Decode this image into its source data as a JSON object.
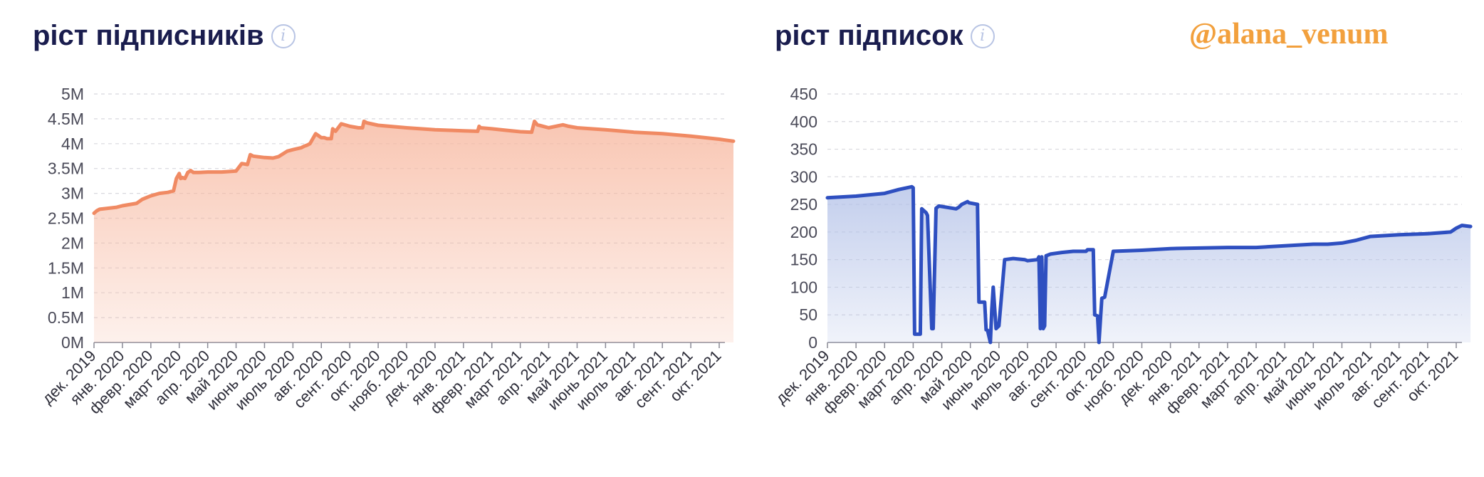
{
  "watermark": "@alana_venum",
  "info_glyph": "i",
  "chart_data": [
    {
      "type": "area",
      "title": "ріст підписників",
      "color": "#f08a63",
      "fill": "#f7b8a0",
      "yticks": [
        "0M",
        "0.5M",
        "1M",
        "1.5M",
        "2M",
        "2.5M",
        "3M",
        "3.5M",
        "4M",
        "4.5M",
        "5M"
      ],
      "ylim": [
        0,
        5000000
      ],
      "xticks": [
        "дек. 2019",
        "янв. 2020",
        "февр. 2020",
        "март 2020",
        "апр. 2020",
        "май 2020",
        "июнь 2020",
        "июль 2020",
        "авг. 2020",
        "сент. 2020",
        "окт. 2020",
        "нояб. 2020",
        "дек. 2020",
        "янв. 2021",
        "февр. 2021",
        "март 2021",
        "апр. 2021",
        "май 2021",
        "июнь 2021",
        "июль 2021",
        "авг. 2021",
        "сент. 2021",
        "окт. 2021"
      ],
      "series": [
        {
          "x": [
            0,
            0.1,
            0.2,
            0.5,
            0.8,
            1,
            1.5,
            1.7,
            2,
            2.3,
            2.6,
            2.8,
            2.9,
            3.0,
            3.05,
            3.1,
            3.2,
            3.3,
            3.4,
            3.5,
            3.7,
            4,
            4.5,
            5,
            5.2,
            5.4,
            5.5,
            5.6,
            6,
            6.3,
            6.5,
            6.8,
            7,
            7.3,
            7.4,
            7.45,
            7.5,
            7.6,
            7.8,
            8.0,
            8.1,
            8.2,
            8.3,
            8.35,
            8.4,
            8.5,
            8.7,
            9,
            9.3,
            9.45,
            9.5,
            9.6,
            10,
            11,
            12,
            12.5,
            13,
            13.5,
            13.55,
            13.6,
            14,
            14.5,
            15,
            15.4,
            15.5,
            15.6,
            16,
            16.5,
            16.7,
            17,
            18,
            19,
            20,
            21,
            22,
            22.5
          ],
          "y": [
            2600000,
            2650000,
            2680000,
            2700000,
            2720000,
            2750000,
            2800000,
            2880000,
            2950000,
            3000000,
            3020000,
            3050000,
            3300000,
            3400000,
            3300000,
            3320000,
            3300000,
            3420000,
            3460000,
            3420000,
            3420000,
            3430000,
            3430000,
            3450000,
            3600000,
            3580000,
            3780000,
            3750000,
            3720000,
            3710000,
            3740000,
            3850000,
            3880000,
            3920000,
            3950000,
            3960000,
            3970000,
            4000000,
            4200000,
            4120000,
            4120000,
            4100000,
            4100000,
            4100000,
            4300000,
            4250000,
            4400000,
            4350000,
            4320000,
            4320000,
            4450000,
            4420000,
            4370000,
            4320000,
            4280000,
            4270000,
            4260000,
            4250000,
            4350000,
            4320000,
            4300000,
            4270000,
            4240000,
            4230000,
            4450000,
            4380000,
            4320000,
            4380000,
            4350000,
            4320000,
            4280000,
            4230000,
            4200000,
            4150000,
            4090000,
            4050000
          ]
        }
      ]
    },
    {
      "type": "area",
      "title": "ріст підписок",
      "color": "#2e4fc0",
      "fill": "#b4c2e8",
      "yticks": [
        "0",
        "50",
        "100",
        "150",
        "200",
        "250",
        "300",
        "350",
        "400",
        "450"
      ],
      "ylim": [
        0,
        450
      ],
      "xticks": [
        "дек. 2019",
        "янв. 2020",
        "февр. 2020",
        "март 2020",
        "апр. 2020",
        "май 2020",
        "июнь 2020",
        "июль 2020",
        "авг. 2020",
        "сент. 2020",
        "окт. 2020",
        "нояб. 2020",
        "дек. 2020",
        "янв. 2021",
        "февр. 2021",
        "март 2021",
        "апр. 2021",
        "май 2021",
        "июнь 2021",
        "июль 2021",
        "авг. 2021",
        "сент. 2021",
        "окт. 2021"
      ],
      "series": [
        {
          "x": [
            0,
            1,
            2,
            2.5,
            2.95,
            3.0,
            3.05,
            3.25,
            3.3,
            3.45,
            3.5,
            3.65,
            3.7,
            3.8,
            3.9,
            4.5,
            4.6,
            4.7,
            4.9,
            4.95,
            5.25,
            5.3,
            5.35,
            5.5,
            5.55,
            5.6,
            5.7,
            5.75,
            5.8,
            5.9,
            6.0,
            6.2,
            6.5,
            6.9,
            7.0,
            7.35,
            7.4,
            7.45,
            7.5,
            7.55,
            7.6,
            7.65,
            7.7,
            7.8,
            8.2,
            8.6,
            9.05,
            9.1,
            9.3,
            9.35,
            9.45,
            9.5,
            9.6,
            9.7,
            10,
            11,
            12,
            14,
            15,
            16,
            17,
            17.5,
            18,
            18.5,
            19,
            20,
            21,
            21.8,
            22,
            22.2,
            22.5
          ],
          "y": [
            262,
            265,
            270,
            277,
            282,
            280,
            15,
            15,
            242,
            235,
            230,
            25,
            25,
            243,
            247,
            242,
            245,
            250,
            255,
            253,
            250,
            73,
            73,
            73,
            23,
            22,
            0,
            60,
            100,
            25,
            30,
            150,
            152,
            150,
            148,
            150,
            155,
            25,
            155,
            25,
            30,
            157,
            158,
            160,
            163,
            165,
            165,
            168,
            168,
            50,
            48,
            0,
            80,
            82,
            165,
            167,
            170,
            172,
            172,
            175,
            178,
            178,
            180,
            185,
            192,
            195,
            197,
            200,
            207,
            212,
            210
          ]
        }
      ]
    }
  ]
}
